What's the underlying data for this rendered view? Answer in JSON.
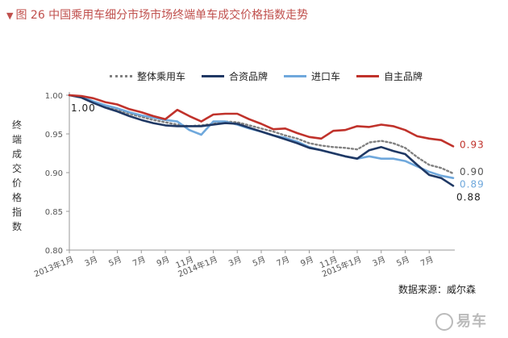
{
  "header": {
    "title": "图 26  中国乘用车细分市场市场终端单车成交价格指数走势"
  },
  "source": "数据来源：威尔森",
  "watermark": "易车",
  "colors": {
    "title": "#c0504d",
    "overall": "#808080",
    "jv": "#1f3864",
    "import": "#6fa8dc",
    "domestic": "#c0322b"
  },
  "chart_data": {
    "type": "line",
    "ylabel": "终端成交价格指数",
    "ylim": [
      0.8,
      1.0
    ],
    "yticks": [
      "1.00",
      "0.95",
      "0.90",
      "0.85",
      "0.80"
    ],
    "yticks_values": [
      1.0,
      0.95,
      0.9,
      0.85,
      0.8
    ],
    "grid": false,
    "legend_position": "top",
    "x_labels": [
      "2013年1月",
      "3月",
      "5月",
      "7月",
      "9月",
      "11月",
      "2014年1月",
      "3月",
      "5月",
      "7月",
      "9月",
      "11月",
      "2015年1月",
      "3月",
      "5月",
      "7月"
    ],
    "x_label_month_index": [
      0,
      2,
      4,
      6,
      8,
      10,
      12,
      14,
      16,
      18,
      20,
      22,
      24,
      26,
      28,
      30
    ],
    "x_months": 32,
    "start_label": "1.00",
    "series": [
      {
        "name": "整体乘用车",
        "style": "dotted",
        "color": "#808080",
        "end_label": "0.90",
        "values": [
          1.0,
          0.997,
          0.991,
          0.986,
          0.981,
          0.976,
          0.972,
          0.968,
          0.965,
          0.962,
          0.96,
          0.961,
          0.963,
          0.966,
          0.965,
          0.961,
          0.957,
          0.953,
          0.948,
          0.944,
          0.938,
          0.935,
          0.933,
          0.932,
          0.93,
          0.939,
          0.941,
          0.938,
          0.932,
          0.92,
          0.91,
          0.906,
          0.899
        ]
      },
      {
        "name": "合资品牌",
        "style": "solid",
        "color": "#1f3864",
        "end_label": "0.88",
        "values": [
          1.0,
          0.997,
          0.99,
          0.984,
          0.979,
          0.973,
          0.968,
          0.964,
          0.961,
          0.96,
          0.96,
          0.96,
          0.962,
          0.964,
          0.963,
          0.958,
          0.953,
          0.948,
          0.943,
          0.938,
          0.932,
          0.929,
          0.925,
          0.921,
          0.918,
          0.929,
          0.933,
          0.928,
          0.924,
          0.91,
          0.897,
          0.893,
          0.883
        ]
      },
      {
        "name": "进口车",
        "style": "solid",
        "color": "#6fa8dc",
        "end_label": "0.89",
        "values": [
          1.0,
          0.998,
          0.992,
          0.987,
          0.983,
          0.978,
          0.974,
          0.971,
          0.968,
          0.966,
          0.955,
          0.949,
          0.966,
          0.966,
          0.962,
          0.957,
          0.953,
          0.948,
          0.945,
          0.94,
          0.933,
          0.929,
          0.925,
          0.921,
          0.918,
          0.921,
          0.918,
          0.918,
          0.915,
          0.908,
          0.901,
          0.896,
          0.893
        ]
      },
      {
        "name": "自主品牌",
        "style": "solid",
        "color": "#c0322b",
        "end_label": "0.93",
        "values": [
          1.0,
          0.999,
          0.996,
          0.991,
          0.988,
          0.982,
          0.978,
          0.973,
          0.969,
          0.981,
          0.973,
          0.966,
          0.975,
          0.976,
          0.976,
          0.969,
          0.963,
          0.956,
          0.957,
          0.951,
          0.946,
          0.944,
          0.954,
          0.955,
          0.96,
          0.959,
          0.962,
          0.96,
          0.955,
          0.947,
          0.944,
          0.942,
          0.934
        ]
      }
    ]
  }
}
